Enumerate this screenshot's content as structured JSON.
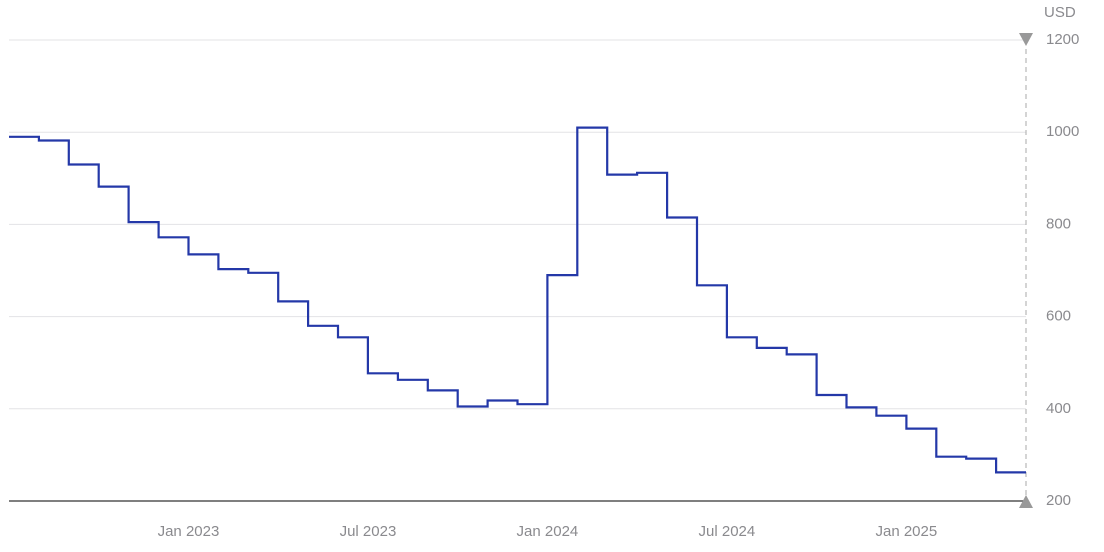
{
  "chart_data": {
    "type": "step-line",
    "y_unit": "USD",
    "x": [
      "2022-07",
      "2022-08",
      "2022-09",
      "2022-10",
      "2022-11",
      "2022-12",
      "2023-01",
      "2023-02",
      "2023-03",
      "2023-04",
      "2023-05",
      "2023-06",
      "2023-07",
      "2023-08",
      "2023-09",
      "2023-10",
      "2023-11",
      "2023-12",
      "2024-01",
      "2024-02",
      "2024-03",
      "2024-04",
      "2024-05",
      "2024-06",
      "2024-07",
      "2024-08",
      "2024-09",
      "2024-10",
      "2024-11",
      "2024-12",
      "2025-01",
      "2025-02",
      "2025-03",
      "2025-04"
    ],
    "series": [
      {
        "color": "#2438a8",
        "values": [
          990,
          982,
          930,
          882,
          805,
          772,
          735,
          703,
          695,
          633,
          580,
          555,
          477,
          463,
          440,
          405,
          418,
          410,
          690,
          1010,
          908,
          912,
          815,
          668,
          555,
          532,
          518,
          430,
          403,
          385,
          357,
          296,
          292,
          262
        ]
      }
    ],
    "xlim": [
      "2022-07",
      "2025-05"
    ],
    "xticks": [
      {
        "value": "2023-01",
        "label": "Jan 2023"
      },
      {
        "value": "2023-07",
        "label": "Jul 2023"
      },
      {
        "value": "2024-01",
        "label": "Jan 2024"
      },
      {
        "value": "2024-07",
        "label": "Jul 2024"
      },
      {
        "value": "2025-01",
        "label": "Jan 2025"
      }
    ],
    "ylim": [
      200,
      1200
    ],
    "yticks": [
      200,
      400,
      600,
      800,
      1000,
      1200
    ],
    "grid": true
  }
}
